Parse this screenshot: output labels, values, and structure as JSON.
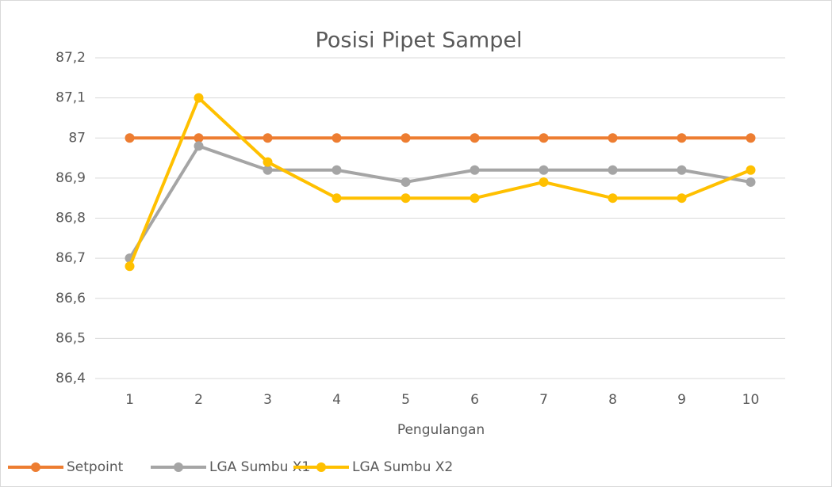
{
  "chart_data": {
    "type": "line",
    "title": "Posisi Pipet Sampel",
    "x_label": "Pengulangan",
    "categories": [
      "1",
      "2",
      "3",
      "4",
      "5",
      "6",
      "7",
      "8",
      "9",
      "10"
    ],
    "series": [
      {
        "name": "Setpoint",
        "color": "#ed7d31",
        "values": [
          87,
          87,
          87,
          87,
          87,
          87,
          87,
          87,
          87,
          87
        ]
      },
      {
        "name": "LGA Sumbu X1",
        "color": "#a5a5a5",
        "values": [
          86.7,
          86.98,
          86.92,
          86.92,
          86.89,
          86.92,
          86.92,
          86.92,
          86.92,
          86.89
        ]
      },
      {
        "name": "LGA Sumbu X2",
        "color": "#ffc000",
        "values": [
          86.68,
          87.1,
          86.94,
          86.85,
          86.85,
          86.85,
          86.89,
          86.85,
          86.85,
          86.92
        ]
      }
    ],
    "ylim": [
      86.4,
      87.2
    ],
    "yticks": [
      {
        "value": 86.4,
        "label": "86,4"
      },
      {
        "value": 86.5,
        "label": "86,5"
      },
      {
        "value": 86.6,
        "label": "86,6"
      },
      {
        "value": 86.7,
        "label": "86,7"
      },
      {
        "value": 86.8,
        "label": "86,8"
      },
      {
        "value": 86.9,
        "label": "86,9"
      },
      87,
      {
        "value": 87.1,
        "label": "87,1"
      },
      {
        "value": 87.2,
        "label": "87,2"
      }
    ],
    "grid": true,
    "legend": "bottom-left"
  }
}
